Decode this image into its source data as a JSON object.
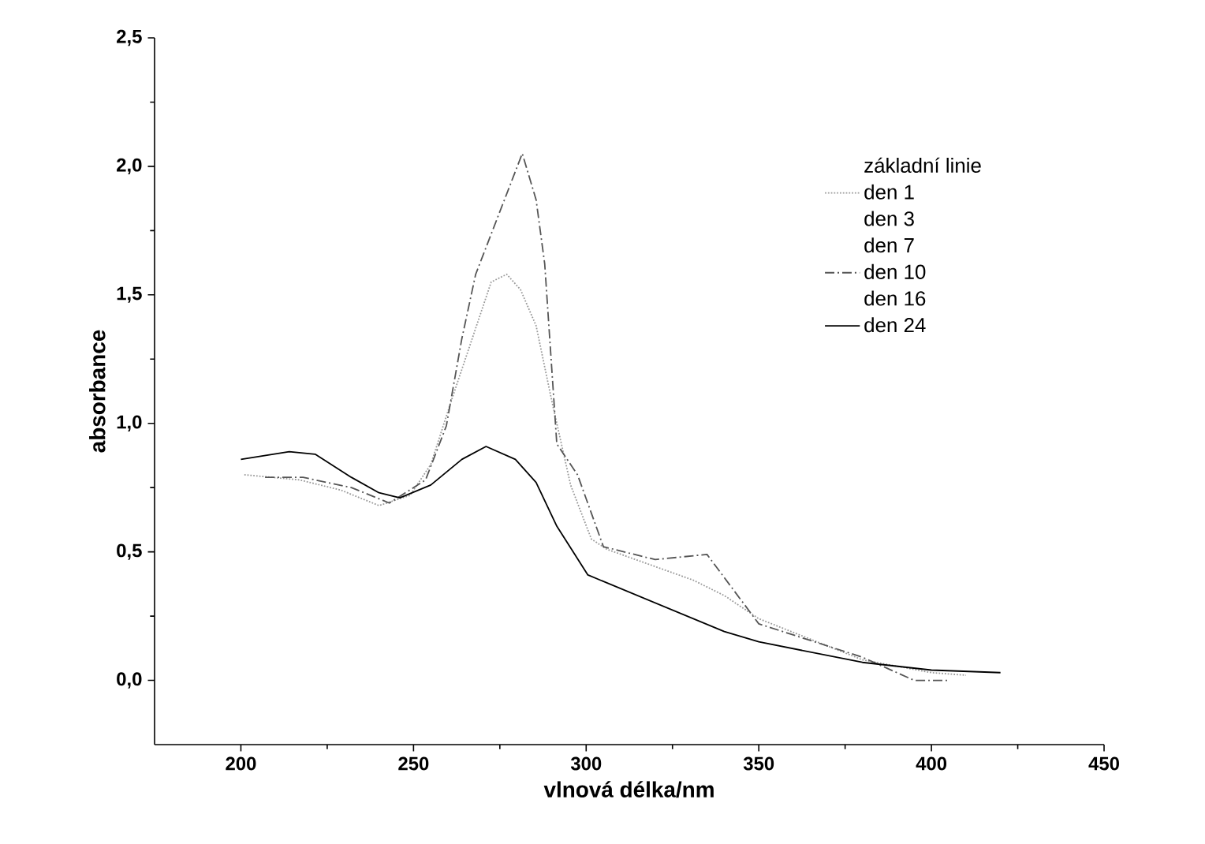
{
  "chart_data": {
    "type": "line",
    "xlabel": "vlnová délka/nm",
    "ylabel": "absorbance",
    "xlim": [
      175,
      450
    ],
    "ylim": [
      -0.25,
      2.5
    ],
    "xticks": [
      200,
      250,
      300,
      350,
      400,
      450
    ],
    "yticks": [
      {
        "value": 0,
        "label": "0,0"
      },
      {
        "value": 0.5,
        "label": "0,5"
      },
      {
        "value": 1,
        "label": "1,0"
      },
      {
        "value": 1.5,
        "label": "1,5"
      },
      {
        "value": 2,
        "label": "2,0"
      },
      {
        "value": 2.5,
        "label": "2,5"
      }
    ],
    "legend": "right",
    "grid": false,
    "marker": "none",
    "series": [
      {
        "name": "základní linie"
      },
      {
        "name": "den 1",
        "color": "#999999",
        "line_style": "dotted",
        "x": [
          201,
          217,
          229,
          240,
          249,
          255,
          261,
          267,
          272.5,
          277,
          281,
          285.5,
          290,
          295.5,
          301.5,
          306,
          331,
          340,
          350,
          380,
          400,
          410
        ],
        "values": [
          0.8,
          0.78,
          0.74,
          0.68,
          0.72,
          0.84,
          1.09,
          1.33,
          1.55,
          1.58,
          1.52,
          1.38,
          1.09,
          0.76,
          0.55,
          0.51,
          0.39,
          0.33,
          0.24,
          0.08,
          0.03,
          0.02
        ]
      },
      {
        "name": "den 3"
      },
      {
        "name": "den 7"
      },
      {
        "name": "den 10",
        "color": "#555555",
        "line_style": "dashed",
        "x": [
          207,
          218,
          232,
          243,
          253.5,
          259.5,
          264,
          268,
          281.5,
          285.5,
          288,
          291.5,
          297.5,
          305,
          320,
          335,
          350,
          380,
          395,
          405
        ],
        "values": [
          0.79,
          0.79,
          0.75,
          0.69,
          0.78,
          0.99,
          1.33,
          1.58,
          2.05,
          1.87,
          1.62,
          0.92,
          0.8,
          0.52,
          0.47,
          0.49,
          0.22,
          0.09,
          0.0,
          0.0
        ]
      },
      {
        "name": "den 16"
      },
      {
        "name": "den 24",
        "color": "#000000",
        "line_style": "solid",
        "x": [
          200,
          214,
          221.5,
          232,
          240,
          246,
          255,
          264,
          271,
          279.5,
          285.5,
          291.5,
          300.5,
          340,
          350,
          380,
          400,
          420
        ],
        "values": [
          0.86,
          0.89,
          0.88,
          0.79,
          0.73,
          0.71,
          0.76,
          0.86,
          0.91,
          0.86,
          0.77,
          0.6,
          0.41,
          0.19,
          0.15,
          0.07,
          0.04,
          0.03
        ]
      }
    ]
  }
}
